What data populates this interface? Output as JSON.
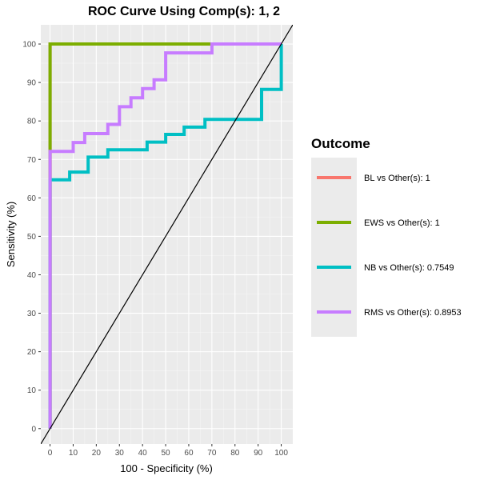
{
  "chart_data": {
    "type": "line",
    "title": "ROC Curve Using Comp(s): 1, 2",
    "xlabel": "100 - Specificity (%)",
    "ylabel": "Sensitivity (%)",
    "xlim": [
      -4,
      105
    ],
    "ylim": [
      -4,
      105
    ],
    "x_ticks": [
      0,
      10,
      20,
      30,
      40,
      50,
      60,
      70,
      80,
      90,
      100
    ],
    "y_ticks": [
      0,
      10,
      20,
      30,
      40,
      50,
      60,
      70,
      80,
      90,
      100
    ],
    "grid": true,
    "legend_title": "Outcome",
    "legend_position": "right",
    "reference_line": {
      "x": [
        0,
        100
      ],
      "y": [
        0,
        100
      ],
      "color": "#000000"
    },
    "series": [
      {
        "name": "BL vs Other(s): 1",
        "color": "#F8766D",
        "x": [
          0,
          0,
          100
        ],
        "y": [
          0,
          100,
          100
        ]
      },
      {
        "name": "EWS vs Other(s): 1",
        "color": "#7CAE00",
        "x": [
          0,
          0,
          100
        ],
        "y": [
          0,
          100,
          100
        ]
      },
      {
        "name": "NB vs Other(s): 0.7549",
        "color": "#00BFC4",
        "x": [
          0,
          0,
          0,
          8.5,
          8.5,
          16.5,
          16.5,
          25,
          25,
          42,
          42,
          50,
          50,
          58,
          58,
          67,
          67,
          91.5,
          91.5,
          100,
          100
        ],
        "y": [
          0,
          64.7,
          64.7,
          64.7,
          66.7,
          66.7,
          70.6,
          70.6,
          72.5,
          72.5,
          74.5,
          74.5,
          76.5,
          76.5,
          78.4,
          78.4,
          80.4,
          80.4,
          88.2,
          88.2,
          100
        ]
      },
      {
        "name": "RMS vs Other(s): 0.8953",
        "color": "#C77CFF",
        "x": [
          0,
          0,
          10,
          10,
          15,
          15,
          25,
          25,
          30,
          30,
          35,
          35,
          40,
          40,
          45,
          45,
          50,
          50,
          70,
          70,
          100
        ],
        "y": [
          0,
          72.1,
          72.1,
          74.4,
          74.4,
          76.7,
          76.7,
          79.1,
          79.1,
          83.7,
          83.7,
          86.0,
          86.0,
          88.4,
          88.4,
          90.7,
          90.7,
          97.7,
          97.7,
          100,
          100
        ]
      }
    ]
  }
}
